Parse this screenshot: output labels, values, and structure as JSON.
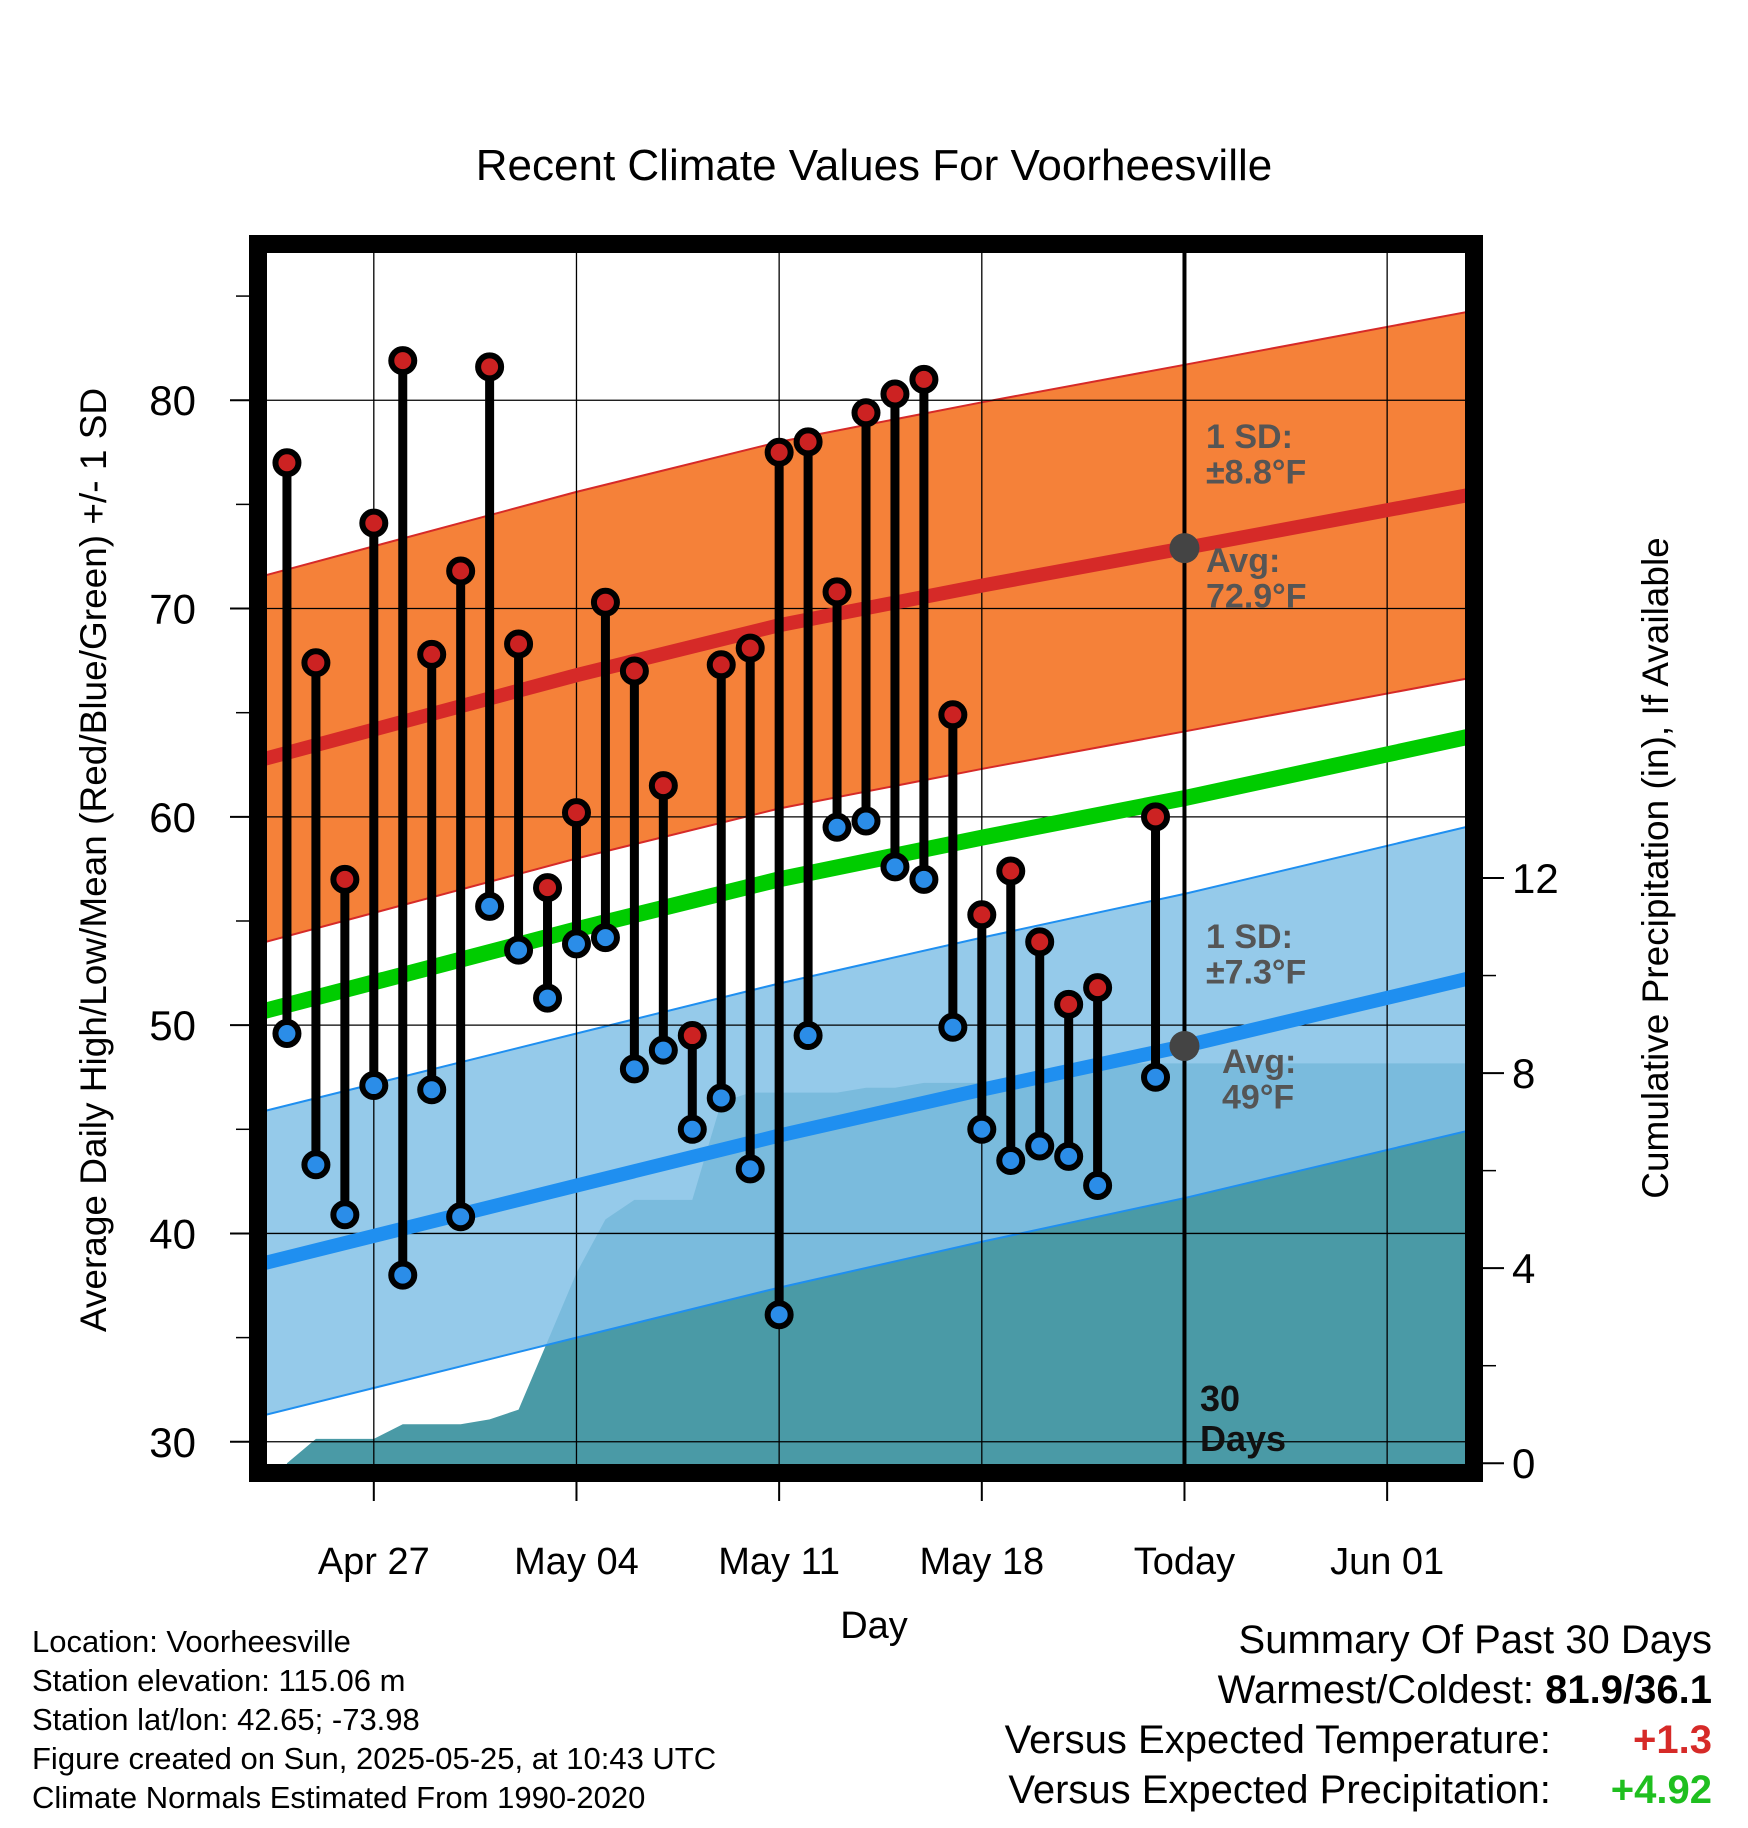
{
  "chart_data": {
    "type": "line",
    "title": "Recent Climate Values For Voorheesville",
    "xlabel": "Day",
    "ylabel": "Average Daily High/Low/Mean (Red/Blue/Green) +/- 1 SD",
    "y2label": "Cumulative Precipitation (in), If Available",
    "x_range": [
      "2025-04-23",
      "2025-06-04"
    ],
    "ylim": [
      28.5,
      87.5
    ],
    "y2lim": [
      -0.2,
      25
    ],
    "x_ticks": [
      {
        "date": "2025-04-27",
        "label": "Apr 27"
      },
      {
        "date": "2025-05-04",
        "label": "May 04"
      },
      {
        "date": "2025-05-11",
        "label": "May 11"
      },
      {
        "date": "2025-05-18",
        "label": "May 18"
      },
      {
        "date": "2025-05-25",
        "label": "Today"
      },
      {
        "date": "2025-06-01",
        "label": "Jun 01"
      }
    ],
    "y_ticks": [
      "30",
      "40",
      "50",
      "60",
      "70",
      "80"
    ],
    "y2_ticks": [
      "0",
      "4",
      "8",
      "12"
    ],
    "today": "2025-05-25",
    "today_label": [
      "30",
      "Days"
    ],
    "grid": true,
    "normals": {
      "x": [
        "2025-04-23",
        "2025-05-04",
        "2025-05-11",
        "2025-05-18",
        "2025-05-25",
        "2025-06-04"
      ],
      "high": [
        62.7,
        66.8,
        69.2,
        71.1,
        72.9,
        75.5
      ],
      "low": [
        38.5,
        42.3,
        44.7,
        46.9,
        49.0,
        52.3
      ],
      "mean": [
        50.6,
        54.6,
        57.0,
        59.0,
        60.9,
        63.9
      ],
      "high_sd": 8.8,
      "low_sd": 7.3
    },
    "series": [
      {
        "name": "High",
        "x": [
          "2025-04-24",
          "2025-04-25",
          "2025-04-26",
          "2025-04-27",
          "2025-04-28",
          "2025-04-29",
          "2025-04-30",
          "2025-05-01",
          "2025-05-02",
          "2025-05-03",
          "2025-05-04",
          "2025-05-05",
          "2025-05-06",
          "2025-05-07",
          "2025-05-08",
          "2025-05-09",
          "2025-05-10",
          "2025-05-11",
          "2025-05-12",
          "2025-05-13",
          "2025-05-14",
          "2025-05-15",
          "2025-05-16",
          "2025-05-17",
          "2025-05-18",
          "2025-05-19",
          "2025-05-20",
          "2025-05-21",
          "2025-05-22",
          "2025-05-23",
          "2025-05-24"
        ],
        "values": [
          77.0,
          67.4,
          57.0,
          74.1,
          81.9,
          67.8,
          71.8,
          81.6,
          68.3,
          56.6,
          60.2,
          70.3,
          67.0,
          61.5,
          49.5,
          67.3,
          68.1,
          77.5,
          78.0,
          70.8,
          79.4,
          80.3,
          81.0,
          64.9,
          55.3,
          57.4,
          54.0,
          51.0,
          51.8,
          null,
          60.0
        ]
      },
      {
        "name": "Low",
        "x": [
          "2025-04-24",
          "2025-04-25",
          "2025-04-26",
          "2025-04-27",
          "2025-04-28",
          "2025-04-29",
          "2025-04-30",
          "2025-05-01",
          "2025-05-02",
          "2025-05-03",
          "2025-05-04",
          "2025-05-05",
          "2025-05-06",
          "2025-05-07",
          "2025-05-08",
          "2025-05-09",
          "2025-05-10",
          "2025-05-11",
          "2025-05-12",
          "2025-05-13",
          "2025-05-14",
          "2025-05-15",
          "2025-05-16",
          "2025-05-17",
          "2025-05-18",
          "2025-05-19",
          "2025-05-20",
          "2025-05-21",
          "2025-05-22",
          "2025-05-23",
          "2025-05-24"
        ],
        "values": [
          49.6,
          43.3,
          40.9,
          47.1,
          38.0,
          46.9,
          40.8,
          55.7,
          53.6,
          51.3,
          53.9,
          54.2,
          47.9,
          48.8,
          45.0,
          46.5,
          43.1,
          36.1,
          49.5,
          59.5,
          59.8,
          57.6,
          57.0,
          49.9,
          45.0,
          43.5,
          44.2,
          43.7,
          42.3,
          null,
          47.5
        ]
      },
      {
        "name": "Cumulative Precipitation",
        "x": [
          "2025-04-24",
          "2025-04-25",
          "2025-04-26",
          "2025-04-27",
          "2025-04-28",
          "2025-04-29",
          "2025-04-30",
          "2025-05-01",
          "2025-05-02",
          "2025-05-03",
          "2025-05-04",
          "2025-05-05",
          "2025-05-06",
          "2025-05-07",
          "2025-05-08",
          "2025-05-09",
          "2025-05-10",
          "2025-05-11",
          "2025-05-12",
          "2025-05-13",
          "2025-05-14",
          "2025-05-15",
          "2025-05-16",
          "2025-05-17",
          "2025-05-18",
          "2025-05-19",
          "2025-05-20",
          "2025-05-21",
          "2025-05-22",
          "2025-05-23",
          "2025-05-24",
          "2025-05-25",
          "2025-06-04"
        ],
        "values": [
          0.0,
          0.5,
          0.5,
          0.5,
          0.8,
          0.8,
          0.8,
          0.9,
          1.1,
          2.5,
          3.9,
          5.0,
          5.4,
          5.4,
          5.4,
          7.4,
          7.6,
          7.6,
          7.6,
          7.6,
          7.7,
          7.7,
          7.8,
          7.8,
          7.8,
          7.8,
          7.9,
          7.9,
          8.2,
          8.2,
          8.2,
          8.2,
          8.2
        ]
      }
    ],
    "annotations": {
      "high_sd_label": [
        "1 SD:",
        "±8.8°F"
      ],
      "high_avg_label": [
        "Avg:",
        "72.9°F"
      ],
      "low_sd_label": [
        "1 SD:",
        "±7.3°F"
      ],
      "low_avg_label": [
        "Avg:",
        "49°F"
      ],
      "today_avg_high": 72.9,
      "today_avg_low": 49.0
    }
  },
  "meta": {
    "location": "Location: Voorheesville",
    "elevation": "Station elevation: 115.06 m",
    "latlon": "Station lat/lon: 42.65; -73.98",
    "created": "Figure created on Sun, 2025-05-25, at 10:43 UTC",
    "normals": "Climate Normals Estimated From 1990-2020"
  },
  "summary": {
    "title": "Summary Of Past 30 Days",
    "warmest_label": "Warmest/Coldest:",
    "warmest_value": "81.9/36.1",
    "temp_label": "Versus Expected Temperature:",
    "temp_value": "+1.3",
    "precip_label": "Versus Expected Precipitation:",
    "precip_value": "+4.92"
  },
  "colors": {
    "high_band": "#f47a2e",
    "high_line": "#d62a28",
    "low_band": "#82c1e6",
    "low_line": "#1f8ff0",
    "mean_line": "#00cc00",
    "precip": "#4a9aa6",
    "high_dot": "#cc2222",
    "low_dot": "#2b8de8",
    "annotation": "#555555",
    "temp_delta": "#d62a28",
    "precip_delta": "#1fbf1f"
  }
}
